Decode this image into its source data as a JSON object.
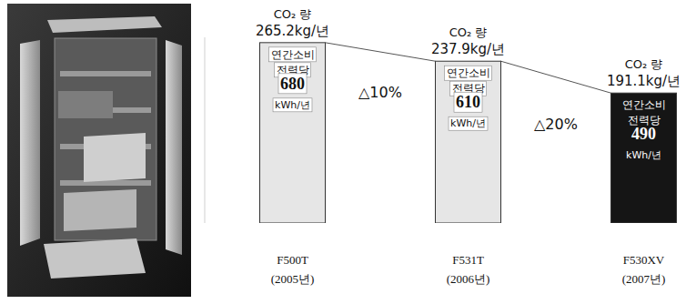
{
  "chart_data": {
    "type": "bar",
    "categories": [
      "F500T (2005년)",
      "F531T (2006년)",
      "F530XV (2007년)"
    ],
    "series": [
      {
        "name": "연간소비 전력당",
        "values": [
          680,
          610,
          490
        ],
        "value_labels": [
          "680 kWh/년",
          "610 kWh/년",
          "490 kWh/년"
        ],
        "colors": [
          "#e6e6e6",
          "#e6e6e6",
          "#151515"
        ]
      }
    ],
    "co2": {
      "name": "CO₂ 량",
      "values": [
        265.2,
        237.9,
        191.1
      ],
      "value_labels": [
        "265.2kg/년",
        "237.9kg/년",
        "191.1kg/년"
      ]
    },
    "annotations": [
      "△10%",
      "△20%"
    ],
    "ylim": [
      0,
      700
    ],
    "yticks": [],
    "grid": false,
    "data_labels": true,
    "tick_labels": "x"
  }
}
